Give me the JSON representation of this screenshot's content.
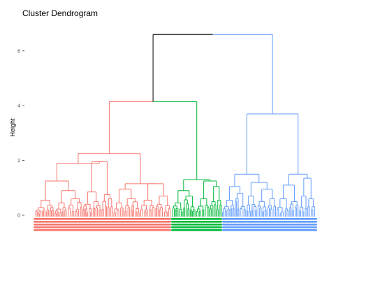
{
  "chart_data": {
    "type": "dendrogram",
    "title": "Cluster Dendrogram",
    "ylabel": "Height",
    "xlabel": "",
    "ylim": [
      0,
      7
    ],
    "yticks": [
      0,
      2,
      4,
      6
    ],
    "grid": false,
    "colors": {
      "root": "#000000",
      "cluster_1": "#F8766D",
      "cluster_2": "#00BA38",
      "cluster_3": "#619CFF"
    },
    "merges": [
      {
        "id": "root",
        "height": 6.6,
        "children": [
          "A",
          "B"
        ],
        "color": "root"
      },
      {
        "id": "A",
        "height": 4.15,
        "children": [
          "red",
          "green"
        ],
        "color": "root"
      },
      {
        "id": "B",
        "height": 3.7,
        "children": [
          "blue-left",
          "blue-right"
        ],
        "color": "cluster_3"
      },
      {
        "id": "red",
        "height": 2.25,
        "color": "cluster_1"
      },
      {
        "id": "red-left",
        "height": 1.9,
        "color": "cluster_1"
      },
      {
        "id": "red-right",
        "height": 1.2,
        "color": "cluster_1"
      },
      {
        "id": "green",
        "height": 1.3,
        "color": "cluster_2"
      },
      {
        "id": "blue-left",
        "height": 1.5,
        "color": "cluster_3"
      },
      {
        "id": "blue-right",
        "height": 1.5,
        "color": "cluster_3"
      }
    ]
  }
}
